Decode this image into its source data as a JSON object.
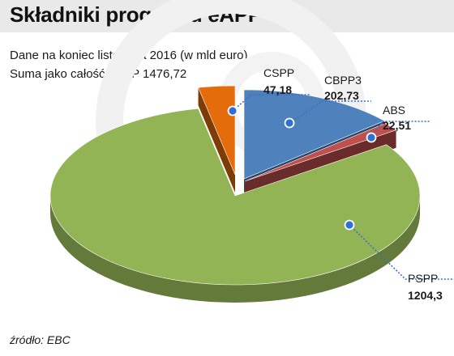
{
  "header": {
    "title": "Składniki programu eAPP"
  },
  "notes": {
    "line1": "Dane na koniec listopada 2016 (w mld euro)",
    "line2": "Suma jako całość eAPP 1476,72"
  },
  "source": "źródło: EBC",
  "colors": {
    "PSPP": "#93b455",
    "CSPP": "#e46c0a",
    "CBPP3": "#4f81bd",
    "ABS": "#c0504d",
    "leader": "#3a6fc4",
    "title_bar": "#e9e9e9"
  },
  "chart_data": {
    "type": "pie",
    "title": "Składniki programu eAPP",
    "subtitle": "Dane na koniec listopada 2016 (w mld euro)",
    "note": "Suma jako całość eAPP 1476,72",
    "total": 1476.72,
    "unit": "mld euro",
    "style": "3d-exploded",
    "slices": [
      {
        "label": "CBPP3",
        "value": 202.73,
        "value_text": "202,73"
      },
      {
        "label": "ABS",
        "value": 22.51,
        "value_text": "22,51"
      },
      {
        "label": "PSPP",
        "value": 1204.3,
        "value_text": "1204,3"
      },
      {
        "label": "CSPP",
        "value": 47.18,
        "value_text": "47,18"
      }
    ]
  }
}
